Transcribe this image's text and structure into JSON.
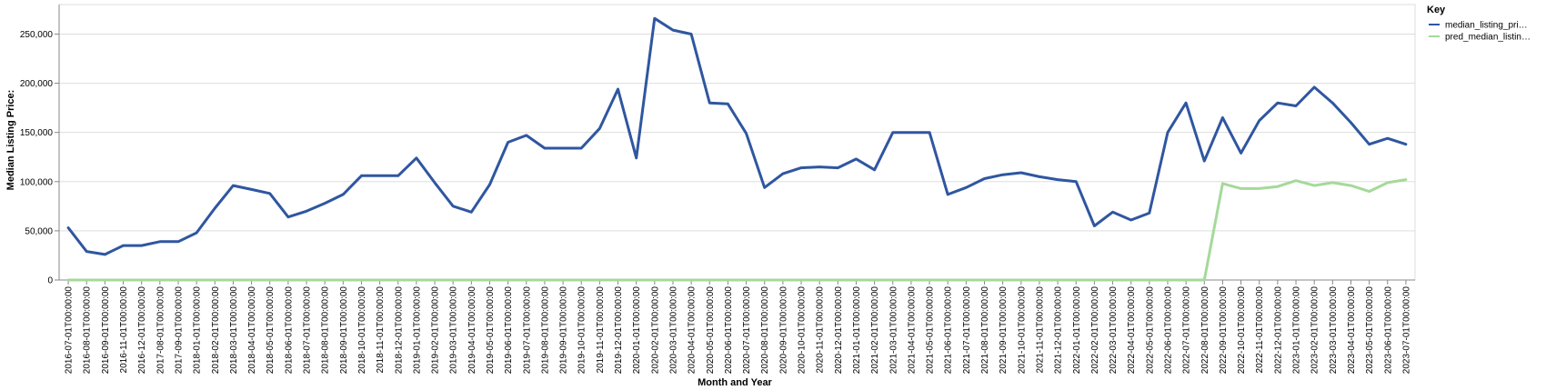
{
  "chart_data": {
    "type": "line",
    "xlabel": "Month and Year",
    "ylabel": "Median Listing Price:",
    "ylim": [
      0,
      280000
    ],
    "yticks": [
      0,
      50000,
      100000,
      150000,
      200000,
      250000
    ],
    "ytick_labels": [
      "0",
      "50,000",
      "100,000",
      "150,000",
      "200,000",
      "250,000"
    ],
    "grid": true,
    "legend": {
      "title": "Key",
      "placement": "top-right"
    },
    "categories": [
      "2016-07-01T00:00:00",
      "2016-08-01T00:00:00",
      "2016-09-01T00:00:00",
      "2016-11-01T00:00:00",
      "2016-12-01T00:00:00",
      "2017-08-01T00:00:00",
      "2017-09-01T00:00:00",
      "2018-01-01T00:00:00",
      "2018-02-01T00:00:00",
      "2018-03-01T00:00:00",
      "2018-04-01T00:00:00",
      "2018-05-01T00:00:00",
      "2018-06-01T00:00:00",
      "2018-07-01T00:00:00",
      "2018-08-01T00:00:00",
      "2018-09-01T00:00:00",
      "2018-10-01T00:00:00",
      "2018-11-01T00:00:00",
      "2018-12-01T00:00:00",
      "2019-01-01T00:00:00",
      "2019-02-01T00:00:00",
      "2019-03-01T00:00:00",
      "2019-04-01T00:00:00",
      "2019-05-01T00:00:00",
      "2019-06-01T00:00:00",
      "2019-07-01T00:00:00",
      "2019-08-01T00:00:00",
      "2019-09-01T00:00:00",
      "2019-10-01T00:00:00",
      "2019-11-01T00:00:00",
      "2019-12-01T00:00:00",
      "2020-01-01T00:00:00",
      "2020-02-01T00:00:00",
      "2020-03-01T00:00:00",
      "2020-04-01T00:00:00",
      "2020-05-01T00:00:00",
      "2020-06-01T00:00:00",
      "2020-07-01T00:00:00",
      "2020-08-01T00:00:00",
      "2020-09-01T00:00:00",
      "2020-10-01T00:00:00",
      "2020-11-01T00:00:00",
      "2020-12-01T00:00:00",
      "2021-01-01T00:00:00",
      "2021-02-01T00:00:00",
      "2021-03-01T00:00:00",
      "2021-04-01T00:00:00",
      "2021-05-01T00:00:00",
      "2021-06-01T00:00:00",
      "2021-07-01T00:00:00",
      "2021-08-01T00:00:00",
      "2021-09-01T00:00:00",
      "2021-10-01T00:00:00",
      "2021-11-01T00:00:00",
      "2021-12-01T00:00:00",
      "2022-01-01T00:00:00",
      "2022-02-01T00:00:00",
      "2022-03-01T00:00:00",
      "2022-04-01T00:00:00",
      "2022-05-01T00:00:00",
      "2022-06-01T00:00:00",
      "2022-07-01T00:00:00",
      "2022-08-01T00:00:00",
      "2022-09-01T00:00:00",
      "2022-10-01T00:00:00",
      "2022-11-01T00:00:00",
      "2022-12-01T00:00:00",
      "2023-01-01T00:00:00",
      "2023-02-01T00:00:00",
      "2023-03-01T00:00:00",
      "2023-04-01T00:00:00",
      "2023-05-01T00:00:00",
      "2023-06-01T00:00:00",
      "2023-07-01T00:00:00"
    ],
    "series": [
      {
        "name": "median_listing_pri…",
        "color": "#2f56a0",
        "values": [
          53000,
          29000,
          26000,
          35000,
          35000,
          39000,
          39000,
          48000,
          73000,
          96000,
          92000,
          88000,
          64000,
          70000,
          78000,
          87000,
          106000,
          106000,
          106000,
          124000,
          99000,
          75000,
          69000,
          97000,
          140000,
          147000,
          134000,
          134000,
          134000,
          154000,
          194000,
          124000,
          266000,
          254000,
          250000,
          180000,
          179000,
          149000,
          94000,
          108000,
          114000,
          115000,
          114000,
          123000,
          112000,
          150000,
          150000,
          150000,
          87000,
          94000,
          103000,
          107000,
          109000,
          105000,
          102000,
          100000,
          55000,
          69000,
          61000,
          68000,
          150000,
          180000,
          121000,
          165000,
          129000,
          162000,
          180000,
          177000,
          196000,
          180000,
          160000,
          138000,
          144000,
          138000
        ]
      },
      {
        "name": "pred_median_listin…",
        "color": "#a5d99a",
        "values": [
          0,
          0,
          0,
          0,
          0,
          0,
          0,
          0,
          0,
          0,
          0,
          0,
          0,
          0,
          0,
          0,
          0,
          0,
          0,
          0,
          0,
          0,
          0,
          0,
          0,
          0,
          0,
          0,
          0,
          0,
          0,
          0,
          0,
          0,
          0,
          0,
          0,
          0,
          0,
          0,
          0,
          0,
          0,
          0,
          0,
          0,
          0,
          0,
          0,
          0,
          0,
          0,
          0,
          0,
          0,
          0,
          0,
          0,
          0,
          0,
          0,
          0,
          0,
          98000,
          93000,
          93000,
          95000,
          101000,
          96000,
          99000,
          96000,
          90000,
          99000,
          102000
        ]
      }
    ]
  }
}
